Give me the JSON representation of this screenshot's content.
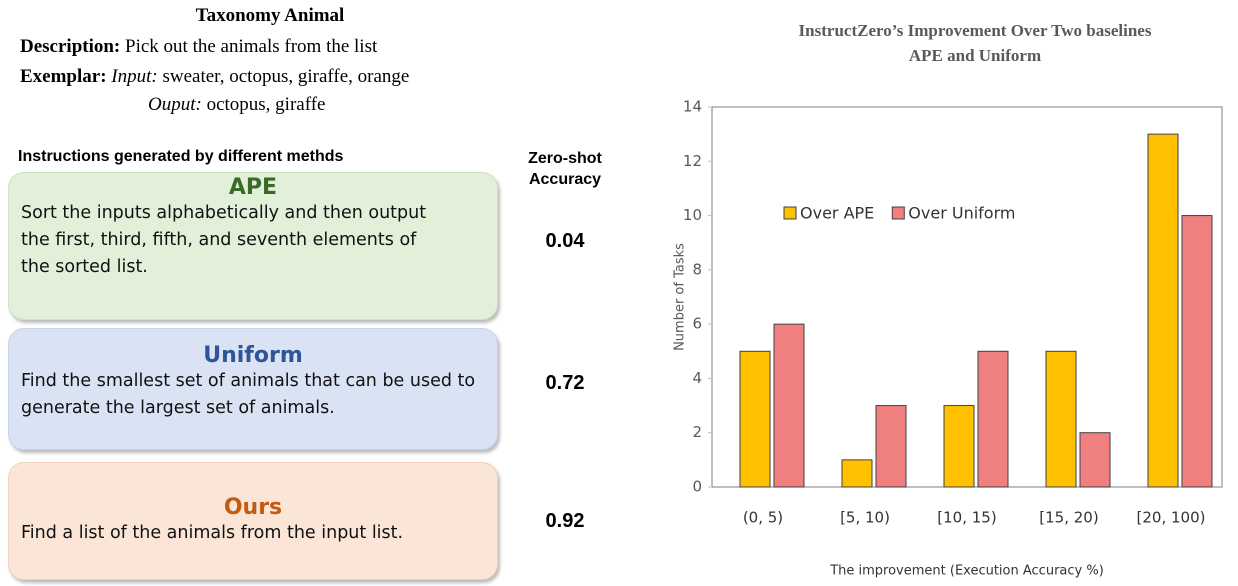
{
  "panel": {
    "title": "Taxonomy Animal",
    "description_label": "Description:",
    "description": "Pick out the animals from the list",
    "exemplar_label": "Exemplar:",
    "input_label": "Input:",
    "input": "sweater, octopus, giraffe, orange",
    "output_label": "Ouput:",
    "output": "octopus, giraffe",
    "instructions_header": "Instructions generated by different methds",
    "accuracy_header": "Zero-shot Accuracy",
    "methods": [
      {
        "name": "APE",
        "instruction": "Sort the inputs alphabetically and then output the first, third, fifth, and seventh elements of the sorted list.",
        "accuracy": 0.04
      },
      {
        "name": "Uniform",
        "instruction": "Find the smallest set of animals that can be used to generate the largest set of animals.",
        "accuracy": 0.72
      },
      {
        "name": "Ours",
        "instruction": "Find a list of the animals from the input list.",
        "accuracy": 0.92
      }
    ]
  },
  "chart_data": {
    "type": "bar",
    "title": [
      "InstructZero’s Improvement Over Two baselines",
      "APE and Uniform"
    ],
    "x_label": "The improvement (Execution Accuracy %)",
    "y_label": "Number of Tasks",
    "categories": [
      "(0, 5)",
      "[5, 10)",
      "[10, 15)",
      "[15, 20)",
      "[20, 100)"
    ],
    "series": [
      {
        "name": "Over APE",
        "color": "#ffc000",
        "values": [
          5,
          1,
          3,
          5,
          13
        ]
      },
      {
        "name": "Over Uniform",
        "color": "#f08080",
        "values": [
          6,
          3,
          5,
          2,
          10
        ]
      }
    ],
    "ylim": [
      0,
      14
    ],
    "yticks": [
      0,
      2,
      4,
      6,
      8,
      10,
      12,
      14
    ],
    "grid": false,
    "legend": "top-left"
  }
}
